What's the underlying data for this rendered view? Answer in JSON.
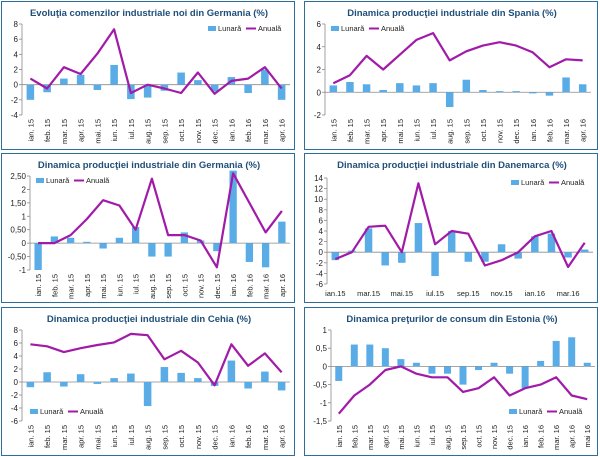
{
  "colors": {
    "monthly": "#5aace6",
    "annual": "#a11aa8",
    "axis": "#8a8a8a",
    "title": "#1f4e79",
    "frame": "#2e6e9a"
  },
  "chart_data": [
    {
      "type": "bar+line",
      "title": "Evoluţia comenzilor industriale noi din Germania (%)",
      "legend": {
        "monthly": "Lunară",
        "annual": "Anuală",
        "position": "top-right"
      },
      "categories": [
        "ian.15",
        "feb.15",
        "mar.15",
        "apr.15",
        "mai.15",
        "iun.15",
        "iul.15",
        "aug.15",
        "sep.15",
        "oct.15",
        "nov.15",
        "dec.15",
        "ian.16",
        "feb.16",
        "mar.16",
        "apr.16"
      ],
      "x_labels": [
        "ian. 15",
        "feb. 15",
        "mar. 15",
        "apr. 15",
        "mai. 15",
        "iun. 15",
        "iul. 15",
        "aug. 15",
        "sep. 15",
        "oct. 15",
        "nov. 15",
        "dec. 15",
        "ian. 16",
        "feb. 16",
        "mar. 16",
        "apr. 16"
      ],
      "series": [
        {
          "name": "Lunară",
          "kind": "bar",
          "values": [
            -2.0,
            -1.0,
            0.8,
            1.3,
            -0.7,
            2.6,
            -1.9,
            -1.7,
            -0.8,
            1.6,
            0.6,
            -0.9,
            1.0,
            -1.1,
            2.0,
            -2.0
          ]
        },
        {
          "name": "Anuală",
          "kind": "line",
          "values": [
            0.8,
            -0.5,
            2.3,
            1.4,
            4.1,
            7.3,
            -1.1,
            0.0,
            -0.5,
            -1.1,
            1.6,
            -1.2,
            0.5,
            0.8,
            2.3,
            -0.5
          ]
        }
      ],
      "ylim": [
        -4,
        8
      ],
      "yticks": [
        -4,
        -2,
        0,
        2,
        4,
        6,
        8
      ],
      "ytick_labels": [
        "-4",
        "-2",
        "0",
        "2",
        "4",
        "6",
        "8"
      ]
    },
    {
      "type": "bar+line",
      "title": "Dinamica producţiei industriale din Spania (%)",
      "legend": {
        "monthly": "Lunară",
        "annual": "Anuală",
        "position": "top-left"
      },
      "categories": [
        "ian.15",
        "feb.15",
        "mar.15",
        "apr.15",
        "mai.15",
        "iun.15",
        "iul.15",
        "aug.15",
        "sep.15",
        "oct.15",
        "nov.15",
        "dec.15",
        "ian.16",
        "feb.16",
        "mar.16",
        "apr.16"
      ],
      "x_labels": [
        "ian. 15",
        "feb. 15",
        "mar. 15",
        "apr. 15",
        "mai. 15",
        "iun. 15",
        "iul. 15",
        "aug. 15",
        "sep. 15",
        "oct. 15",
        "nov. 15",
        "dec. 15",
        "ian. 16",
        "feb. 16",
        "mar. 16",
        "apr. 16"
      ],
      "series": [
        {
          "name": "Lunară",
          "kind": "bar",
          "values": [
            0.6,
            0.9,
            0.7,
            0.2,
            0.8,
            0.6,
            0.8,
            -1.3,
            1.1,
            0.2,
            0.1,
            0.1,
            -0.1,
            -0.3,
            1.3,
            0.7
          ]
        },
        {
          "name": "Anuală",
          "kind": "line",
          "values": [
            0.8,
            1.5,
            3.2,
            2.0,
            3.3,
            4.6,
            5.2,
            2.8,
            3.6,
            4.1,
            4.4,
            4.1,
            3.5,
            2.2,
            2.9,
            2.8
          ]
        }
      ],
      "ylim": [
        -2,
        6
      ],
      "yticks": [
        -2,
        0,
        2,
        4,
        6
      ],
      "ytick_labels": [
        "-2",
        "0",
        "2",
        "4",
        "6"
      ]
    },
    {
      "type": "bar+line",
      "title": "Dinamica producţiei industriale din Germania (%)",
      "legend": {
        "monthly": "Lunară",
        "annual": "Anuală",
        "position": "top-left"
      },
      "categories": [
        "ian.15",
        "feb.15",
        "mar.15",
        "apr.15",
        "mai.15",
        "iun.15",
        "iul.15",
        "aug.15",
        "sep.15",
        "oct.15",
        "nov.15",
        "dec.15",
        "ian.16",
        "feb.16",
        "mar.16",
        "apr.16"
      ],
      "x_labels": [
        "ian. 15",
        "feb. 15",
        "mar. 15",
        "apr. 15",
        "mai. 15",
        "iun. 15",
        "iul. 15",
        "aug. 15",
        "sep. 15",
        "oct. 15",
        "nov. 15",
        "dec. 15",
        "ian. 16",
        "feb. 16",
        "mar. 16",
        "apr. 16"
      ],
      "series": [
        {
          "name": "Lunară",
          "kind": "bar",
          "values": [
            -1.0,
            0.25,
            0.2,
            0.05,
            -0.2,
            0.2,
            0.6,
            -0.5,
            -0.5,
            0.4,
            0.1,
            -0.3,
            2.7,
            -0.7,
            -0.9,
            0.8
          ]
        },
        {
          "name": "Anuală",
          "kind": "line",
          "values": [
            0.0,
            0.0,
            0.3,
            0.9,
            1.6,
            1.4,
            0.5,
            2.4,
            0.3,
            0.3,
            0.1,
            -0.9,
            2.6,
            1.5,
            0.4,
            1.2
          ]
        }
      ],
      "ylim": [
        -1,
        2.5
      ],
      "yticks": [
        -1,
        -0.5,
        0,
        0.5,
        1,
        1.5,
        2,
        2.5
      ],
      "ytick_labels": [
        "-1",
        "-0,50",
        "0",
        "0,50",
        "1",
        "1,50",
        "2",
        "2,50"
      ]
    },
    {
      "type": "bar+line",
      "title": "Dinamica producţiei industriale din Danemarca (%)",
      "legend": {
        "monthly": "Lunară",
        "annual": "Anuală",
        "position": "top-right"
      },
      "categories": [
        "ian.15",
        "feb.15",
        "mar.15",
        "apr.15",
        "mai.15",
        "iun.15",
        "iul.15",
        "aug.15",
        "sep.15",
        "oct.15",
        "nov.15",
        "dec.15",
        "ian.16",
        "feb.16",
        "mar.16",
        "apr.16"
      ],
      "x_labels": [
        "ian.15",
        "",
        "mar.15",
        "",
        "mai.15",
        "",
        "iul.15",
        "",
        "sep.15",
        "",
        "nov.15",
        "",
        "ian.16",
        "",
        "mar.16",
        ""
      ],
      "series": [
        {
          "name": "Lunară",
          "kind": "bar",
          "values": [
            -1.5,
            0.3,
            4.5,
            -2.5,
            -2.0,
            5.5,
            -4.5,
            4.0,
            -1.8,
            -1.8,
            1.5,
            -1.2,
            3.0,
            3.5,
            -1.0,
            0.5
          ]
        },
        {
          "name": "Anuală",
          "kind": "line",
          "values": [
            -1.3,
            0.0,
            4.8,
            5.0,
            0.0,
            13.0,
            1.5,
            4.0,
            3.5,
            -2.5,
            -1.5,
            0.0,
            3.0,
            4.0,
            -2.8,
            1.8
          ]
        }
      ],
      "ylim": [
        -6,
        14
      ],
      "yticks": [
        -6,
        -4,
        -2,
        0,
        2,
        4,
        6,
        8,
        10,
        12,
        14
      ],
      "ytick_labels": [
        "-6",
        "-4",
        "-2",
        "0",
        "2",
        "4",
        "6",
        "8",
        "10",
        "12",
        "14"
      ]
    },
    {
      "type": "bar+line",
      "title": "Dinamica producţiei industriale din Cehia (%)",
      "legend": {
        "monthly": "Lunară",
        "annual": "Anuală",
        "position": "bottom-left"
      },
      "categories": [
        "ian.15",
        "feb.15",
        "mar.15",
        "apr.15",
        "mai.15",
        "iun.15",
        "iul.15",
        "aug.15",
        "sep.15",
        "oct.15",
        "nov.15",
        "dec.15",
        "ian.16",
        "feb.16",
        "mar.16",
        "apr.16"
      ],
      "x_labels": [
        "ian. 15",
        "feb. 15",
        "mar. 15",
        "apr. 15",
        "mai. 15",
        "iun. 15",
        "iul. 15",
        "aug. 15",
        "sep. 15",
        "oct. 15",
        "nov. 15",
        "dec. 15",
        "ian. 16",
        "feb. 16",
        "mar. 16",
        "apr. 16"
      ],
      "series": [
        {
          "name": "Lunară",
          "kind": "bar",
          "values": [
            -0.8,
            1.5,
            -0.7,
            1.2,
            -0.3,
            0.6,
            1.3,
            -3.7,
            2.3,
            1.4,
            0.6,
            -0.6,
            3.3,
            -1.0,
            1.6,
            -1.3
          ]
        },
        {
          "name": "Anuală",
          "kind": "line",
          "values": [
            5.8,
            5.5,
            4.6,
            5.2,
            5.7,
            6.1,
            7.4,
            7.2,
            3.5,
            4.8,
            3.0,
            -0.5,
            5.8,
            2.5,
            4.4,
            1.5
          ]
        }
      ],
      "ylim": [
        -6,
        8
      ],
      "yticks": [
        -6,
        -4,
        -2,
        0,
        2,
        4,
        6,
        8
      ],
      "ytick_labels": [
        "-6",
        "-4",
        "-2",
        "0",
        "2",
        "4",
        "6",
        "8"
      ]
    },
    {
      "type": "bar+line",
      "title": "Dinamica preţurilor de consum din Estonia (%)",
      "legend": {
        "monthly": "Lunară",
        "annual": "Anuală",
        "position": "bottom-right"
      },
      "categories": [
        "ian.15",
        "feb.15",
        "mar.15",
        "apr.15",
        "mai.15",
        "iun.15",
        "iul.15",
        "aug.15",
        "sep.15",
        "oct.15",
        "nov.15",
        "dec.15",
        "ian.16",
        "feb.16",
        "mar.16",
        "apr.16",
        "mai.16"
      ],
      "x_labels": [
        "ian. 15",
        "feb. 15",
        "mar. 15",
        "apr. 15",
        "mai. 15",
        "iun. 15",
        "iul. 15",
        "aug. 15",
        "sep. 15",
        "oct. 15",
        "nov. 15",
        "dec. 15",
        "ian. 16",
        "feb. 16",
        "mar. 16",
        "apr. 16",
        "mai 16"
      ],
      "series": [
        {
          "name": "Lunară",
          "kind": "bar",
          "values": [
            -0.4,
            0.6,
            0.6,
            0.5,
            0.2,
            0.1,
            -0.2,
            -0.2,
            -0.5,
            -0.1,
            0.1,
            -0.2,
            -0.6,
            0.15,
            0.7,
            0.8,
            0.1
          ]
        },
        {
          "name": "Anuală",
          "kind": "line",
          "values": [
            -1.3,
            -0.8,
            -0.5,
            -0.1,
            0.0,
            -0.2,
            -0.3,
            -0.3,
            -0.7,
            -0.6,
            -0.3,
            -0.8,
            -0.6,
            -0.5,
            -0.3,
            -0.8,
            -0.9
          ]
        }
      ],
      "ylim": [
        -1.5,
        1
      ],
      "yticks": [
        -1.5,
        -1,
        -0.5,
        0,
        0.5,
        1
      ],
      "ytick_labels": [
        "-1,5",
        "-1",
        "-0,5",
        "0",
        "0,5",
        "1"
      ]
    }
  ]
}
